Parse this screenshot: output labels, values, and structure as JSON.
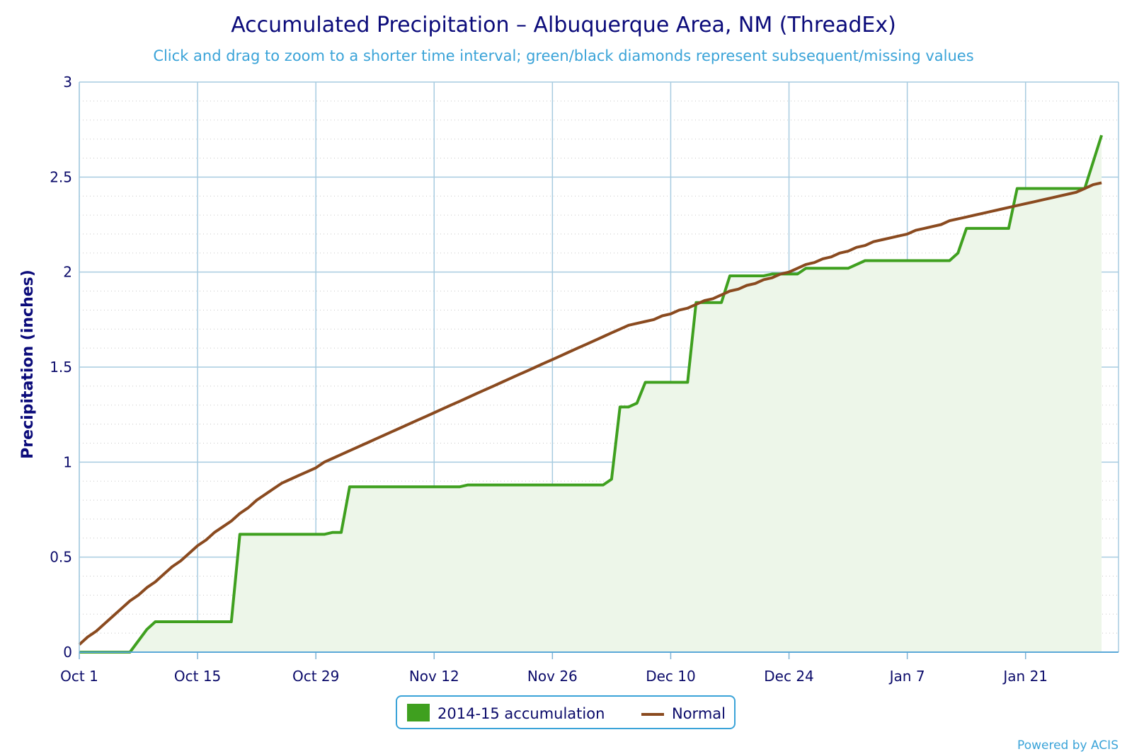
{
  "chart_data": {
    "type": "line",
    "title": "Accumulated Precipitation – Albuquerque Area, NM (ThreadEx)",
    "subtitle": "Click and drag to zoom to a shorter time interval; green/black diamonds represent subsequent/missing values",
    "ylabel": "Precipitation (inches)",
    "xlabel": "",
    "ylim": [
      0,
      3
    ],
    "yticks": [
      "0",
      "0.5",
      "1",
      "1.5",
      "2",
      "2.5",
      "3"
    ],
    "x_range": [
      "Oct 1",
      "Feb 1"
    ],
    "xticks": [
      {
        "label": "Oct 1",
        "day": 0
      },
      {
        "label": "Oct 15",
        "day": 14
      },
      {
        "label": "Oct 29",
        "day": 28
      },
      {
        "label": "Nov 12",
        "day": 42
      },
      {
        "label": "Nov 26",
        "day": 56
      },
      {
        "label": "Dec 10",
        "day": 70
      },
      {
        "label": "Dec 24",
        "day": 84
      },
      {
        "label": "Jan 7",
        "day": 98
      },
      {
        "label": "Jan 21",
        "day": 112
      }
    ],
    "grid": true,
    "legend_position": "bottom-center",
    "series": [
      {
        "name": "2014-15 accumulation",
        "color": "#3fa01f",
        "fill": "#edf6e9",
        "points": [
          [
            0,
            0
          ],
          [
            6,
            0
          ],
          [
            8,
            0.12
          ],
          [
            9,
            0.16
          ],
          [
            18,
            0.16
          ],
          [
            19,
            0.62
          ],
          [
            29,
            0.62
          ],
          [
            30,
            0.63
          ],
          [
            31,
            0.63
          ],
          [
            32,
            0.87
          ],
          [
            45,
            0.87
          ],
          [
            46,
            0.88
          ],
          [
            62,
            0.88
          ],
          [
            63,
            0.91
          ],
          [
            64,
            1.29
          ],
          [
            65,
            1.29
          ],
          [
            66,
            1.31
          ],
          [
            67,
            1.42
          ],
          [
            72,
            1.42
          ],
          [
            73,
            1.84
          ],
          [
            76,
            1.84
          ],
          [
            77,
            1.98
          ],
          [
            81,
            1.98
          ],
          [
            82,
            1.99
          ],
          [
            85,
            1.99
          ],
          [
            86,
            2.02
          ],
          [
            91,
            2.02
          ],
          [
            93,
            2.06
          ],
          [
            103,
            2.06
          ],
          [
            104,
            2.1
          ],
          [
            105,
            2.23
          ],
          [
            110,
            2.23
          ],
          [
            111,
            2.44
          ],
          [
            119,
            2.44
          ],
          [
            121,
            2.72
          ]
        ]
      },
      {
        "name": "Normal",
        "color": "#8a4a1f",
        "points": [
          [
            0,
            0.04
          ],
          [
            1,
            0.08
          ],
          [
            2,
            0.11
          ],
          [
            3,
            0.15
          ],
          [
            4,
            0.19
          ],
          [
            5,
            0.23
          ],
          [
            6,
            0.27
          ],
          [
            7,
            0.3
          ],
          [
            8,
            0.34
          ],
          [
            9,
            0.37
          ],
          [
            10,
            0.41
          ],
          [
            11,
            0.45
          ],
          [
            12,
            0.48
          ],
          [
            13,
            0.52
          ],
          [
            14,
            0.56
          ],
          [
            15,
            0.59
          ],
          [
            16,
            0.63
          ],
          [
            17,
            0.66
          ],
          [
            18,
            0.69
          ],
          [
            19,
            0.73
          ],
          [
            20,
            0.76
          ],
          [
            21,
            0.8
          ],
          [
            22,
            0.83
          ],
          [
            23,
            0.86
          ],
          [
            24,
            0.89
          ],
          [
            25,
            0.91
          ],
          [
            26,
            0.93
          ],
          [
            27,
            0.95
          ],
          [
            28,
            0.97
          ],
          [
            29,
            1.0
          ],
          [
            30,
            1.02
          ],
          [
            31,
            1.04
          ],
          [
            32,
            1.06
          ],
          [
            33,
            1.08
          ],
          [
            34,
            1.1
          ],
          [
            35,
            1.12
          ],
          [
            36,
            1.14
          ],
          [
            37,
            1.16
          ],
          [
            38,
            1.18
          ],
          [
            39,
            1.2
          ],
          [
            40,
            1.22
          ],
          [
            41,
            1.24
          ],
          [
            42,
            1.26
          ],
          [
            43,
            1.28
          ],
          [
            44,
            1.3
          ],
          [
            45,
            1.32
          ],
          [
            46,
            1.34
          ],
          [
            47,
            1.36
          ],
          [
            48,
            1.38
          ],
          [
            49,
            1.4
          ],
          [
            50,
            1.42
          ],
          [
            51,
            1.44
          ],
          [
            52,
            1.46
          ],
          [
            53,
            1.48
          ],
          [
            54,
            1.5
          ],
          [
            55,
            1.52
          ],
          [
            56,
            1.54
          ],
          [
            57,
            1.56
          ],
          [
            58,
            1.58
          ],
          [
            59,
            1.6
          ],
          [
            60,
            1.62
          ],
          [
            61,
            1.64
          ],
          [
            62,
            1.66
          ],
          [
            63,
            1.68
          ],
          [
            64,
            1.7
          ],
          [
            65,
            1.72
          ],
          [
            66,
            1.73
          ],
          [
            67,
            1.74
          ],
          [
            68,
            1.75
          ],
          [
            69,
            1.77
          ],
          [
            70,
            1.78
          ],
          [
            71,
            1.8
          ],
          [
            72,
            1.81
          ],
          [
            73,
            1.83
          ],
          [
            74,
            1.85
          ],
          [
            75,
            1.86
          ],
          [
            76,
            1.88
          ],
          [
            77,
            1.9
          ],
          [
            78,
            1.91
          ],
          [
            79,
            1.93
          ],
          [
            80,
            1.94
          ],
          [
            81,
            1.96
          ],
          [
            82,
            1.97
          ],
          [
            83,
            1.99
          ],
          [
            84,
            2.0
          ],
          [
            85,
            2.02
          ],
          [
            86,
            2.04
          ],
          [
            87,
            2.05
          ],
          [
            88,
            2.07
          ],
          [
            89,
            2.08
          ],
          [
            90,
            2.1
          ],
          [
            91,
            2.11
          ],
          [
            92,
            2.13
          ],
          [
            93,
            2.14
          ],
          [
            94,
            2.16
          ],
          [
            95,
            2.17
          ],
          [
            96,
            2.18
          ],
          [
            97,
            2.19
          ],
          [
            98,
            2.2
          ],
          [
            99,
            2.22
          ],
          [
            100,
            2.23
          ],
          [
            101,
            2.24
          ],
          [
            102,
            2.25
          ],
          [
            103,
            2.27
          ],
          [
            104,
            2.28
          ],
          [
            105,
            2.29
          ],
          [
            106,
            2.3
          ],
          [
            107,
            2.31
          ],
          [
            108,
            2.32
          ],
          [
            109,
            2.33
          ],
          [
            110,
            2.34
          ],
          [
            111,
            2.35
          ],
          [
            112,
            2.36
          ],
          [
            113,
            2.37
          ],
          [
            114,
            2.38
          ],
          [
            115,
            2.39
          ],
          [
            116,
            2.4
          ],
          [
            117,
            2.41
          ],
          [
            118,
            2.42
          ],
          [
            119,
            2.44
          ],
          [
            120,
            2.46
          ],
          [
            121,
            2.47
          ]
        ]
      }
    ],
    "credit": "Powered by ACIS"
  }
}
